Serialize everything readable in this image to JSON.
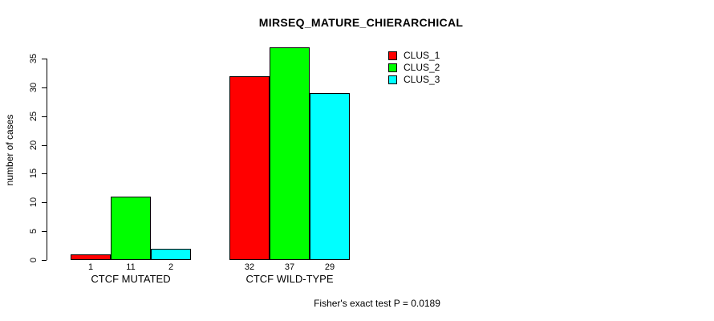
{
  "chart_data": {
    "type": "bar",
    "title": "MIRSEQ_MATURE_CHIERARCHICAL",
    "ylabel": "number of cases",
    "xlabel": "",
    "categories": [
      "CTCF MUTATED",
      "CTCF WILD-TYPE"
    ],
    "series": [
      {
        "name": "CLUS_1",
        "color": "#ff0000",
        "values": [
          1,
          32
        ]
      },
      {
        "name": "CLUS_2",
        "color": "#00ff00",
        "values": [
          11,
          37
        ]
      },
      {
        "name": "CLUS_3",
        "color": "#00ffff",
        "values": [
          2,
          29
        ]
      }
    ],
    "bar_value_labels": [
      [
        "1",
        "11",
        "2"
      ],
      [
        "32",
        "37",
        "29"
      ]
    ],
    "yticks": [
      0,
      5,
      10,
      15,
      20,
      25,
      30,
      35
    ],
    "ylim": [
      0,
      37
    ],
    "grid": false,
    "legend_position": "top-right",
    "annotation": "Fisher's exact test P = 0.0189"
  }
}
